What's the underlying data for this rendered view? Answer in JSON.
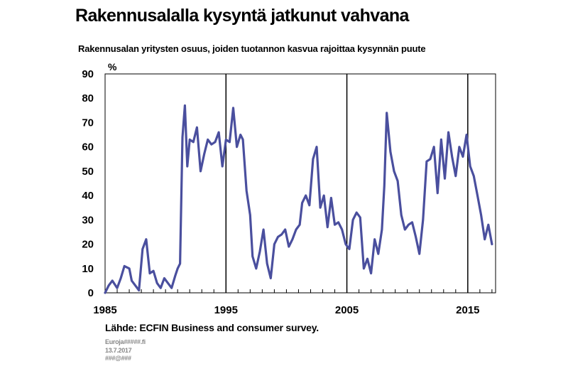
{
  "title": "Rakennusalalla kysyntä jatkunut vahvana",
  "subtitle": "Rakennusalan yritysten osuus, joiden tuotannon kasvua rajoittaa kysynnän puute",
  "source": "Lähde: ECFIN Business and consumer survey.",
  "meta": [
    "Euroja#####.fi",
    "13.7.2017",
    "###@###"
  ],
  "colors": {
    "series": "#4a4f9e",
    "axis": "#000000",
    "background": "#ffffff"
  },
  "chart_data": {
    "type": "line",
    "ylabel": "%",
    "ylim": [
      0,
      90
    ],
    "y_ticks": [
      0,
      10,
      20,
      30,
      40,
      50,
      60,
      70,
      80,
      90
    ],
    "xlim": [
      1985,
      2017.3
    ],
    "x_ticks": [
      1985,
      1995,
      2005,
      2015
    ],
    "x_tick_labels": [
      "1985",
      "1995",
      "2005",
      "2015"
    ],
    "vertical_gridlines": [
      1995,
      2005,
      2015
    ],
    "grid": "vertical only",
    "series": [
      {
        "x": [
          1985.0,
          1985.3,
          1985.6,
          1986.0,
          1986.3,
          1986.6,
          1987.0,
          1987.2,
          1987.5,
          1987.8,
          1988.1,
          1988.4,
          1988.7,
          1989.0,
          1989.3,
          1989.6,
          1989.9,
          1990.2,
          1990.5,
          1990.8,
          1991.0,
          1991.2,
          1991.4,
          1991.6,
          1991.8,
          1992.0,
          1992.3,
          1992.6,
          1992.9,
          1993.2,
          1993.5,
          1993.8,
          1994.1,
          1994.4,
          1994.7,
          1995.0,
          1995.3,
          1995.6,
          1995.9,
          1996.2,
          1996.4,
          1996.7,
          1997.0,
          1997.2,
          1997.5,
          1997.8,
          1998.1,
          1998.4,
          1998.7,
          1999.0,
          1999.3,
          1999.6,
          1999.9,
          2000.2,
          2000.5,
          2000.8,
          2001.1,
          2001.3,
          2001.6,
          2001.9,
          2002.2,
          2002.5,
          2002.8,
          2003.1,
          2003.4,
          2003.7,
          2004.0,
          2004.3,
          2004.6,
          2004.9,
          2005.2,
          2005.5,
          2005.8,
          2006.1,
          2006.4,
          2006.7,
          2007.0,
          2007.3,
          2007.6,
          2007.9,
          2008.1,
          2008.3,
          2008.6,
          2008.9,
          2009.2,
          2009.5,
          2009.8,
          2010.1,
          2010.4,
          2010.7,
          2011.0,
          2011.3,
          2011.6,
          2011.9,
          2012.2,
          2012.5,
          2012.8,
          2013.1,
          2013.4,
          2013.7,
          2014.0,
          2014.3,
          2014.6,
          2014.9,
          2015.2,
          2015.5,
          2015.8,
          2016.1,
          2016.4,
          2016.7,
          2017.0
        ],
        "values": [
          0,
          3,
          5,
          2,
          6,
          11,
          10,
          5,
          3,
          1,
          18,
          22,
          8,
          9,
          4,
          2,
          6,
          4,
          2,
          7,
          10,
          12,
          64,
          77,
          52,
          63,
          62,
          68,
          50,
          57,
          63,
          61,
          62,
          66,
          52,
          63,
          62,
          76,
          60,
          65,
          63,
          42,
          32,
          15,
          10,
          17,
          26,
          12,
          6,
          20,
          23,
          24,
          26,
          19,
          22,
          26,
          28,
          37,
          40,
          36,
          55,
          60,
          35,
          40,
          27,
          39,
          28,
          29,
          26,
          20,
          18,
          30,
          33,
          31,
          10,
          14,
          8,
          22,
          16,
          26,
          44,
          74,
          58,
          50,
          46,
          32,
          26,
          28,
          29,
          23,
          16,
          30,
          54,
          55,
          60,
          41,
          63,
          47,
          66,
          56,
          48,
          60,
          56,
          65,
          52,
          48,
          40,
          32,
          22,
          28,
          20
        ]
      }
    ]
  }
}
